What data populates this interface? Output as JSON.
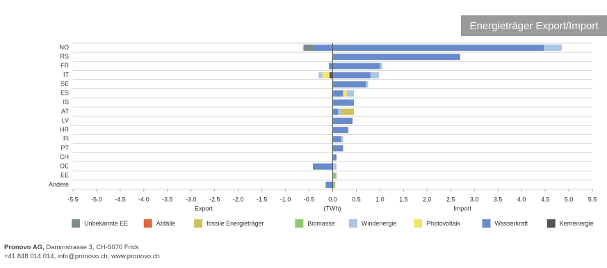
{
  "chart_data": {
    "type": "diverging-bar",
    "title": "Energieträger Export/Import",
    "categories": [
      "NO",
      "RS",
      "FR",
      "IT",
      "SE",
      "ES",
      "IS",
      "AT",
      "LV",
      "HR",
      "FI",
      "PT",
      "CH",
      "DE",
      "EE",
      "Andere"
    ],
    "series": [
      {
        "name": "Unbekannte EE",
        "color": "#7f8a8c",
        "values": [
          0,
          0,
          0,
          0,
          0,
          0,
          0,
          0,
          0,
          0,
          0,
          0,
          0,
          0,
          0,
          0
        ],
        "export_values": [
          -0.2,
          0,
          0,
          0,
          0,
          0,
          0,
          0,
          0,
          0,
          0,
          0,
          0,
          0,
          0,
          0
        ]
      },
      {
        "name": "Abfälle",
        "color": "#e0663c",
        "values": [
          0,
          0,
          0,
          0,
          0,
          0,
          0,
          0,
          0,
          0,
          0,
          0,
          0,
          0,
          0,
          0
        ],
        "export_values": [
          0,
          0,
          0,
          0,
          0,
          0,
          0,
          0,
          0,
          0,
          0,
          0,
          0,
          0,
          0,
          0
        ]
      },
      {
        "name": "fossile Energieträger",
        "color": "#cbc35e",
        "values": [
          0,
          0,
          0,
          0,
          0,
          0,
          0,
          0.28,
          0,
          0,
          0,
          0,
          0,
          0,
          0,
          0
        ],
        "export_values": [
          0,
          0,
          0,
          0,
          0,
          0,
          0,
          0,
          0,
          0,
          0,
          0,
          0,
          0,
          0,
          0
        ]
      },
      {
        "name": "Biomasse",
        "color": "#8fca72",
        "values": [
          0,
          0,
          0,
          0,
          0,
          0,
          0,
          0,
          0,
          0,
          0,
          0,
          0,
          0,
          0.08,
          0.05
        ],
        "export_values": [
          0,
          0,
          0,
          0,
          0,
          0,
          0,
          0,
          0,
          0,
          0,
          0,
          0,
          0,
          0,
          0
        ]
      },
      {
        "name": "Windenergie",
        "color": "#aac5e6",
        "values": [
          0.38,
          0,
          0.05,
          0.18,
          0.05,
          0.15,
          0,
          0.05,
          0,
          0,
          0.04,
          0,
          0,
          0.08,
          0,
          0
        ],
        "export_values": [
          0,
          0,
          0,
          -0.08,
          0,
          0,
          0,
          0,
          0,
          0,
          0,
          0,
          0,
          0,
          0,
          0
        ]
      },
      {
        "name": "Photovoltaik",
        "color": "#f3e46c",
        "values": [
          0,
          0,
          0,
          0,
          0,
          0.08,
          0,
          0,
          0,
          0,
          0,
          0,
          0,
          0,
          0,
          0
        ],
        "export_values": [
          0,
          0,
          0,
          -0.15,
          0,
          0,
          0,
          0,
          0,
          0,
          0,
          0,
          0,
          0,
          0,
          0
        ]
      },
      {
        "name": "Wasserkraft",
        "color": "#6a8bcb",
        "values": [
          4.47,
          2.7,
          1.0,
          0.8,
          0.7,
          0.22,
          0.45,
          0.12,
          0.42,
          0.33,
          0.18,
          0.22,
          0.08,
          0,
          0,
          0
        ],
        "export_values": [
          -0.42,
          0,
          -0.08,
          0,
          0,
          0,
          0,
          0,
          0,
          0,
          0,
          0,
          0,
          -0.42,
          0,
          -0.15
        ]
      },
      {
        "name": "Kernenergie",
        "color": "#555555",
        "values": [
          0,
          0,
          0,
          0,
          0,
          0,
          0,
          0,
          0,
          0,
          0,
          0,
          0,
          0,
          0,
          0
        ],
        "export_values": [
          0,
          0,
          0,
          -0.07,
          0,
          0,
          0,
          0,
          0,
          0,
          0,
          0,
          0,
          0,
          0,
          0
        ]
      }
    ],
    "xlim": [
      -5.5,
      5.5
    ],
    "xticks": [
      -5.5,
      {
        "value": -5,
        "label": "-5.0"
      },
      -4.5,
      {
        "value": -4,
        "label": "-4.0"
      },
      -3.5,
      {
        "value": -3,
        "label": "-3.0"
      },
      -2.5,
      {
        "value": -2,
        "label": "-2.0"
      },
      -1.5,
      {
        "value": -1,
        "label": "-1.0"
      },
      -0.5,
      {
        "value": 0,
        "label": "0.0"
      },
      0.5,
      {
        "value": 1,
        "label": "1.0"
      },
      1.5,
      {
        "value": 2,
        "label": "2.0"
      },
      2.5,
      {
        "value": 3,
        "label": "3.0"
      },
      3.5,
      {
        "value": 4,
        "label": "4.0"
      },
      4.5,
      {
        "value": 5,
        "label": "5.0"
      },
      5.5
    ],
    "xlabel_left": "Export",
    "xlabel_center": "(TWh)",
    "xlabel_right": "Import",
    "legend": "bottom"
  },
  "footer": {
    "company": "Pronovo AG,",
    "address": "Dammstrasse 3, CH-5070 Frick",
    "contact": "+41 848 014 014, info@pronovo.ch, www.pronovo.ch"
  }
}
